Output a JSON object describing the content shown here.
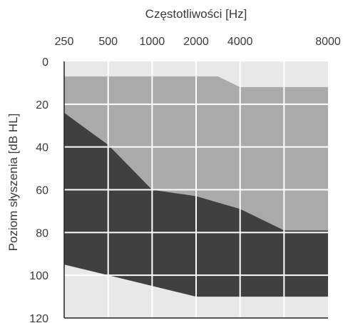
{
  "chart_data": {
    "type": "area",
    "title": "",
    "xlabel": "Częstotliwości [Hz]",
    "ylabel": "Poziom słyszenia [dB HL]",
    "x_axis_position": "top",
    "y_axis_inverted": true,
    "x_ticks": [
      "250",
      "500",
      "1000",
      "2000",
      "4000",
      "8000"
    ],
    "y_ticks": [
      "0",
      "20",
      "40",
      "60",
      "80",
      "100",
      "120"
    ],
    "ylim": [
      0,
      120
    ],
    "grid": true,
    "colors": {
      "background": "#e8e8e8",
      "light_band": "#aaaaaa",
      "dark_band": "#404040",
      "grid": "#ffffff",
      "axis": "#222222"
    },
    "series": [
      {
        "points": [
          [
            "250",
            7
          ],
          [
            "500",
            7
          ],
          [
            "1000",
            7
          ],
          [
            "2000",
            7
          ],
          [
            "3000",
            7
          ],
          [
            "4000",
            12
          ],
          [
            "8000",
            12
          ]
        ]
      },
      {
        "points": [
          [
            "250",
            24
          ],
          [
            "500",
            39
          ],
          [
            "1000",
            60
          ],
          [
            "2000",
            63
          ],
          [
            "4000",
            69
          ],
          [
            "8000",
            79
          ]
        ]
      },
      {
        "points": [
          [
            "250",
            95
          ],
          [
            "500",
            100
          ],
          [
            "1000",
            105
          ],
          [
            "2000",
            110
          ],
          [
            "4000",
            110
          ],
          [
            "8000",
            110
          ]
        ]
      }
    ]
  }
}
